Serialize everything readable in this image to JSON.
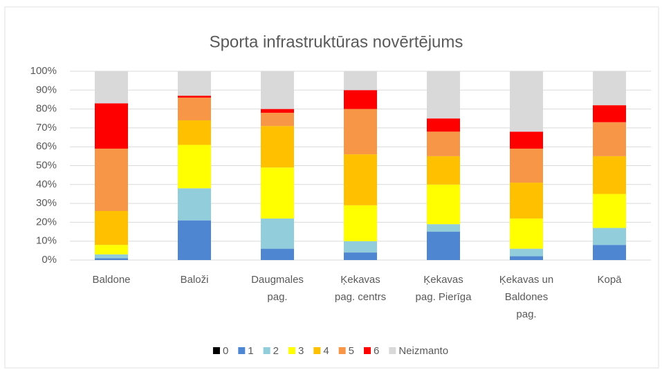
{
  "chart_data": {
    "type": "stacked_bar",
    "title": "Sporta infrastruktūras novērtējums",
    "categories": [
      "Baldone",
      "Baloži",
      "Daugmales pag.",
      "Ķekavas pag. centrs",
      "Ķekavas pag. Pierīga",
      "Ķekavas un Baldones pag.",
      "Kopā"
    ],
    "series": [
      {
        "name": "0",
        "color": "#000000",
        "values": [
          0,
          0,
          0,
          0,
          0,
          0,
          0
        ]
      },
      {
        "name": "1",
        "color": "#4f86d2",
        "values": [
          1,
          21,
          6,
          4,
          15,
          2,
          8
        ]
      },
      {
        "name": "2",
        "color": "#92cddc",
        "values": [
          2,
          17,
          16,
          6,
          4,
          4,
          9
        ]
      },
      {
        "name": "3",
        "color": "#ffff00",
        "values": [
          5,
          23,
          27,
          19,
          21,
          16,
          18
        ]
      },
      {
        "name": "4",
        "color": "#ffc000",
        "values": [
          18,
          13,
          22,
          27,
          15,
          19,
          20
        ]
      },
      {
        "name": "5",
        "color": "#f79646",
        "values": [
          33,
          12,
          7,
          24,
          13,
          18,
          18
        ]
      },
      {
        "name": "6",
        "color": "#ff0000",
        "values": [
          24,
          1,
          2,
          10,
          7,
          9,
          9
        ]
      },
      {
        "name": "Neizmanto",
        "color": "#d9d9d9",
        "values": [
          17,
          13,
          20,
          10,
          25,
          32,
          18
        ]
      }
    ],
    "ylim": [
      0,
      100
    ],
    "yticks": [
      {
        "value": 0,
        "label": "0%"
      },
      {
        "value": 10,
        "label": "10%"
      },
      {
        "value": 20,
        "label": "20%"
      },
      {
        "value": 30,
        "label": "30%"
      },
      {
        "value": 40,
        "label": "40%"
      },
      {
        "value": 50,
        "label": "50%"
      },
      {
        "value": 60,
        "label": "60%"
      },
      {
        "value": 70,
        "label": "70%"
      },
      {
        "value": 80,
        "label": "80%"
      },
      {
        "value": 90,
        "label": "90%"
      },
      {
        "value": 100,
        "label": "100%"
      }
    ],
    "grid": true,
    "legend": "bottom"
  }
}
